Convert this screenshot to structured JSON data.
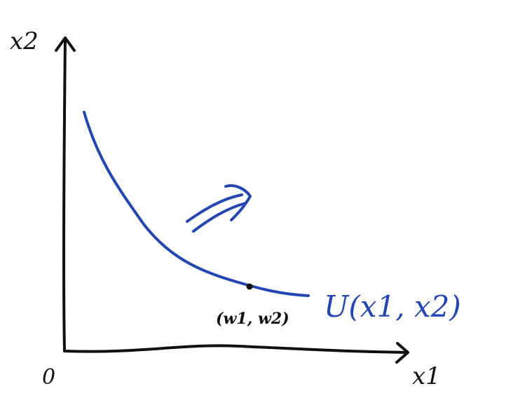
{
  "diagram": {
    "axes": {
      "x_label": "x1",
      "y_label": "x2",
      "origin_label": "0"
    },
    "curve": {
      "label": "U(x1, x2)",
      "point_label": "(w1, w2)"
    },
    "colors": {
      "axis": "#111111",
      "curve": "#2346b4",
      "background": "#ffffff"
    },
    "icons": {
      "direction_arrow": "double-arrow-icon"
    }
  }
}
